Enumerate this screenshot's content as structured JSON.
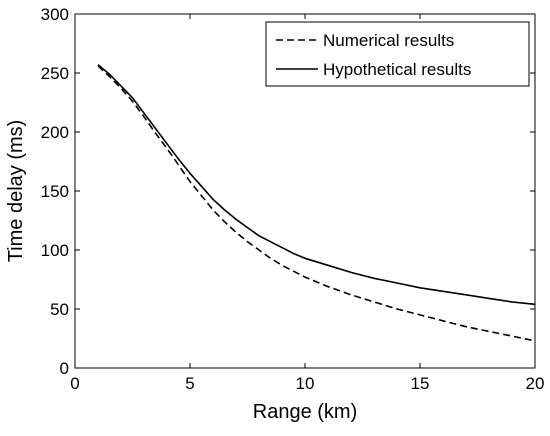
{
  "chart_data": {
    "type": "line",
    "xlabel": "Range (km)",
    "ylabel": "Time delay (ms)",
    "xlim": [
      0,
      20
    ],
    "ylim": [
      0,
      300
    ],
    "xticks": [
      0,
      5,
      10,
      15,
      20
    ],
    "yticks": [
      0,
      50,
      100,
      150,
      200,
      250,
      300
    ],
    "grid": false,
    "legend_position": "top-right",
    "series": [
      {
        "name": "Numerical results",
        "style": "dashed",
        "color": "#000000",
        "x": [
          1,
          1.5,
          2,
          2.5,
          3,
          3.5,
          4,
          4.5,
          5,
          5.5,
          6,
          6.5,
          7,
          7.5,
          8,
          8.5,
          9,
          9.5,
          10,
          11,
          12,
          13,
          14,
          15,
          16,
          17,
          18,
          19,
          20
        ],
        "y": [
          256,
          247,
          237,
          226,
          213,
          199,
          186,
          172,
          158,
          146,
          134,
          124,
          115,
          107,
          100,
          93,
          87,
          82,
          77,
          69,
          62,
          56,
          50,
          45,
          40,
          35,
          31,
          27,
          23
        ]
      },
      {
        "name": "Hypothetical results",
        "style": "solid",
        "color": "#000000",
        "x": [
          1,
          1.5,
          2,
          2.5,
          3,
          3.5,
          4,
          4.5,
          5,
          5.5,
          6,
          6.5,
          7,
          7.5,
          8,
          8.5,
          9,
          9.5,
          10,
          11,
          12,
          13,
          14,
          15,
          16,
          17,
          18,
          19,
          20
        ],
        "y": [
          257,
          249,
          239,
          229,
          216,
          203,
          190,
          177,
          165,
          154,
          143,
          134,
          126,
          119,
          112,
          107,
          102,
          97,
          93,
          87,
          81,
          76,
          72,
          68,
          65,
          62,
          59,
          56,
          54
        ]
      }
    ]
  }
}
